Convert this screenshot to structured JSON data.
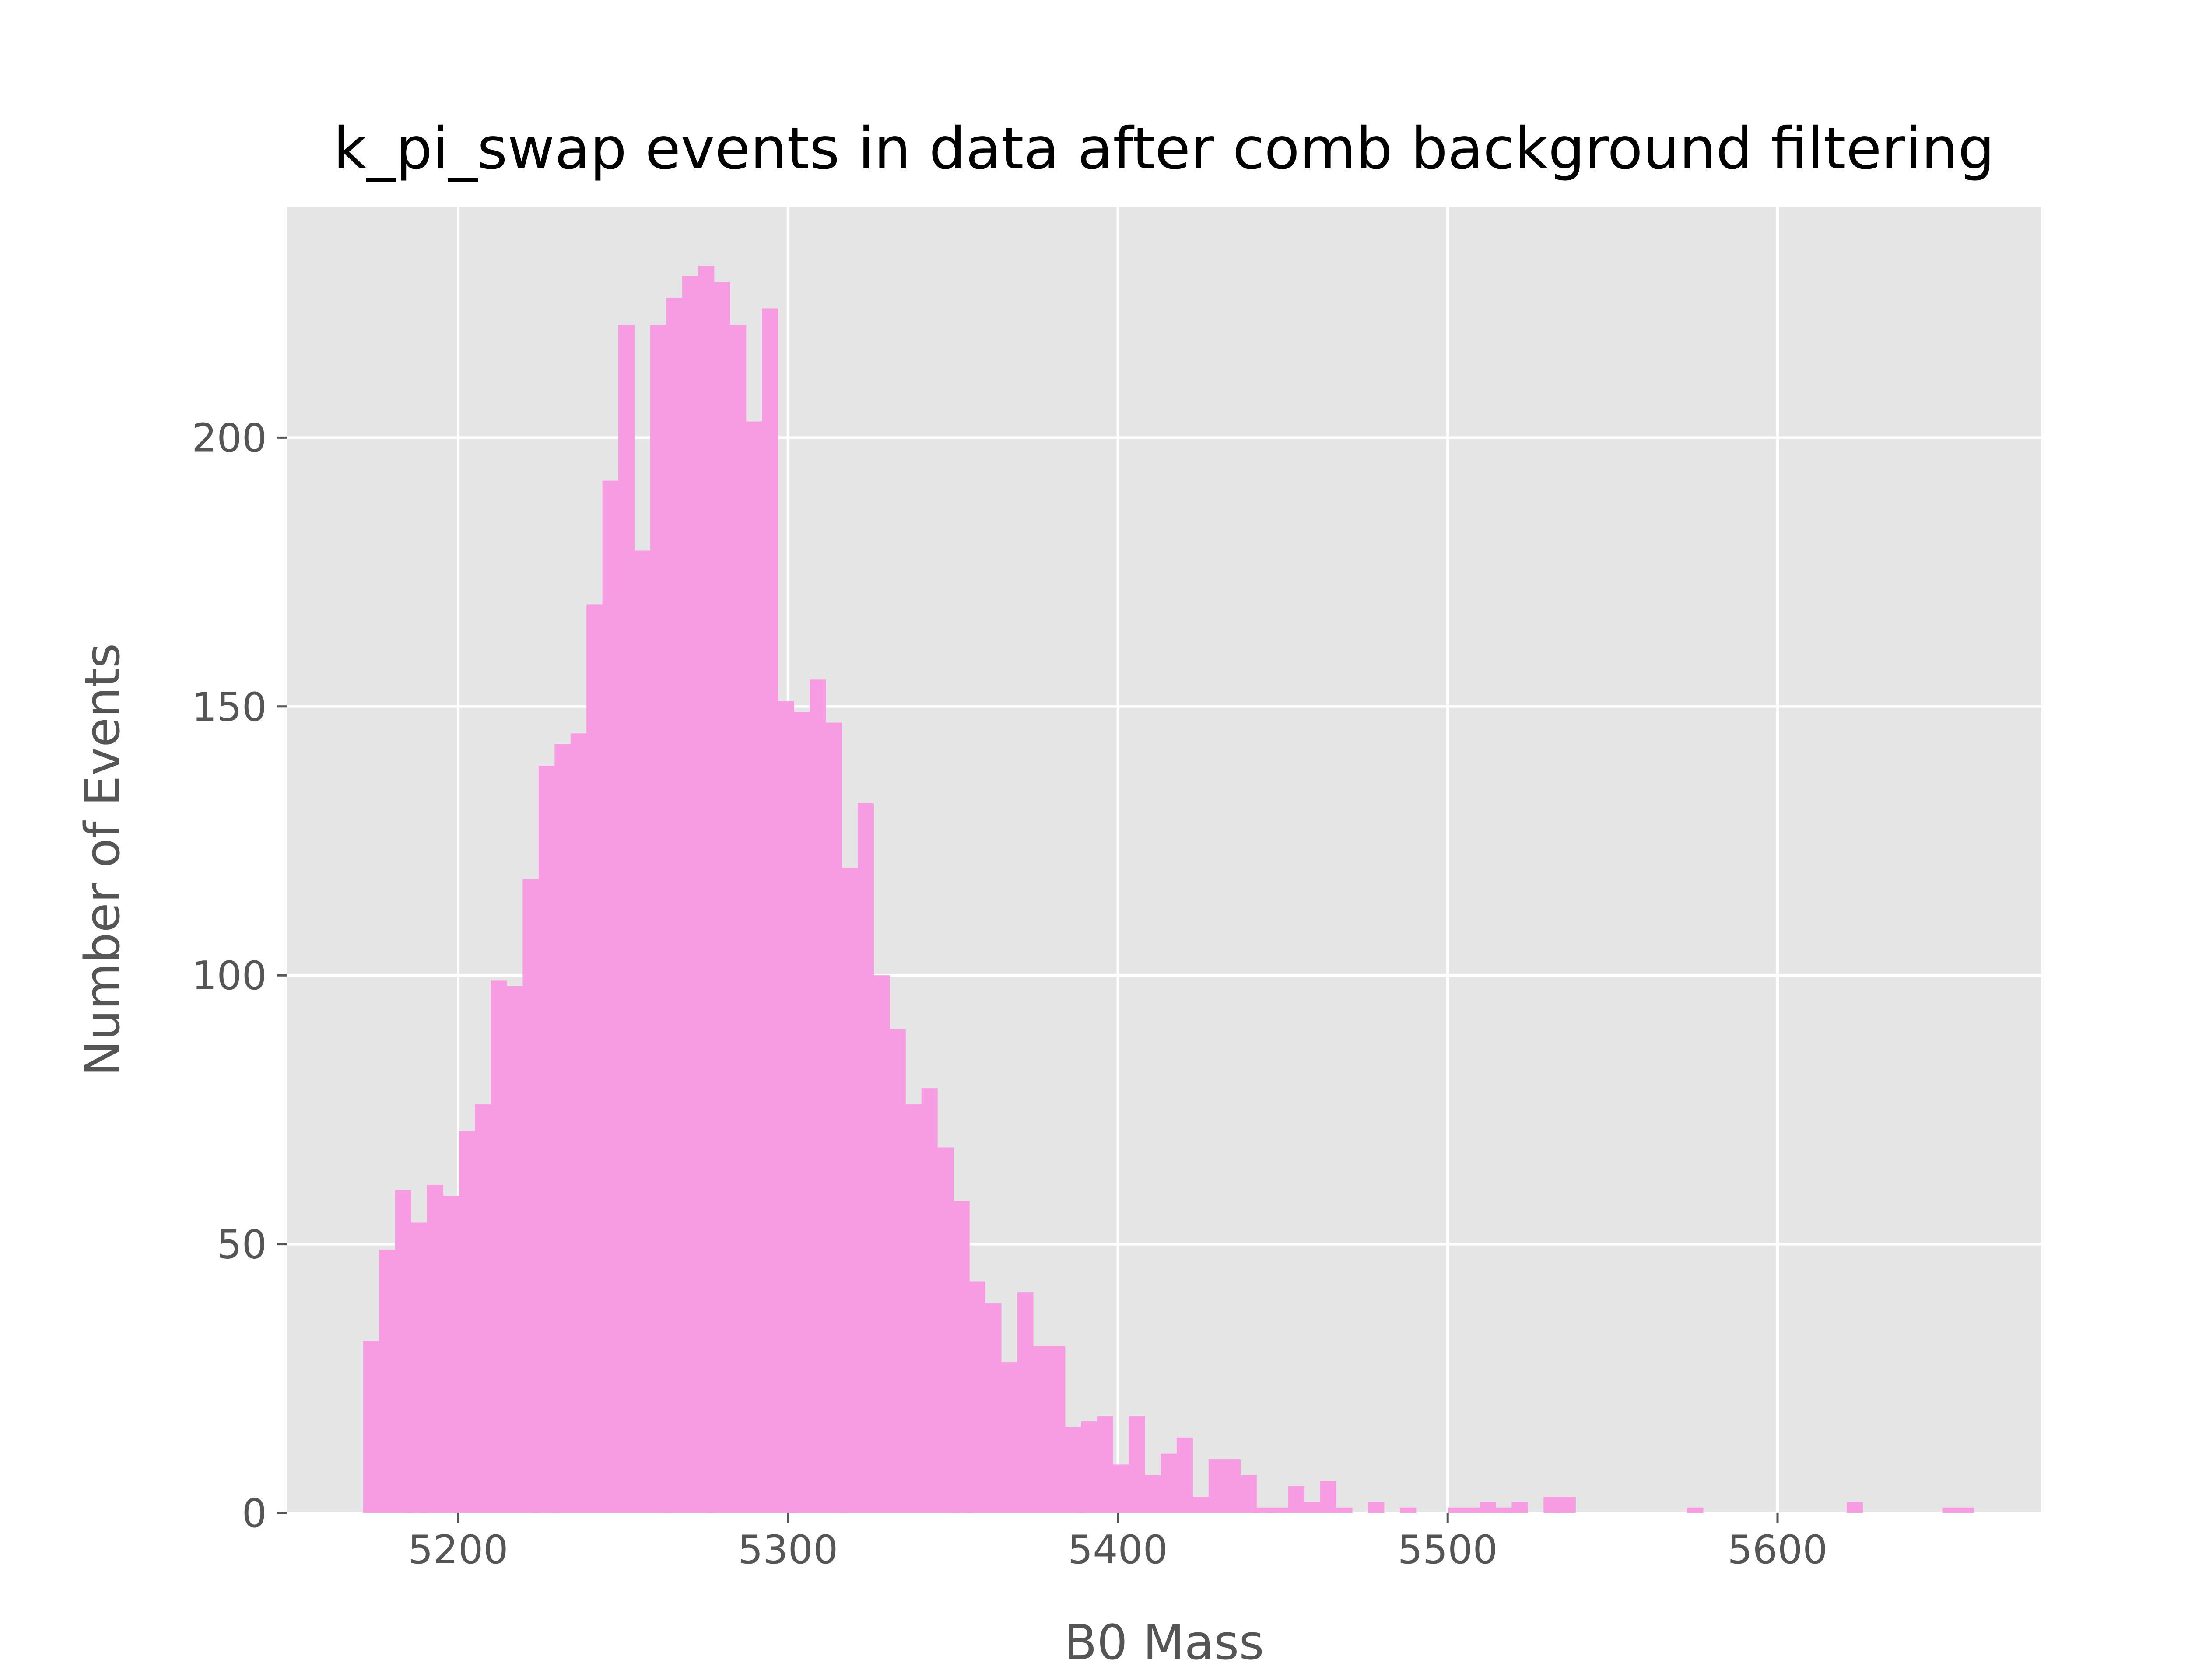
{
  "chart_data": {
    "type": "bar",
    "title": "k_pi_swap events in data after comb background filtering",
    "xlabel": "B0 Mass",
    "ylabel": "Number of Events",
    "xlim": [
      5148,
      5680
    ],
    "ylim": [
      0,
      243
    ],
    "grid": true,
    "legend": "none",
    "bar_color": "#f79be3",
    "background": "#e5e5e5",
    "grid_color": "#ffffff",
    "xticks": [
      {
        "value": 5200,
        "label": "5200"
      },
      {
        "value": 5300,
        "label": "5300"
      },
      {
        "value": 5400,
        "label": "5400"
      },
      {
        "value": 5500,
        "label": "5500"
      },
      {
        "value": 5600,
        "label": "5600"
      }
    ],
    "yticks": [
      {
        "value": 0,
        "label": "0"
      },
      {
        "value": 50,
        "label": "50"
      },
      {
        "value": 100,
        "label": "100"
      },
      {
        "value": 150,
        "label": "150"
      },
      {
        "value": 200,
        "label": "200"
      }
    ],
    "bin_start": 5171.2,
    "bin_width": 4.836,
    "values": [
      32,
      49,
      60,
      54,
      61,
      59,
      71,
      76,
      99,
      98,
      118,
      139,
      143,
      145,
      169,
      192,
      221,
      179,
      221,
      226,
      230,
      232,
      229,
      221,
      203,
      224,
      151,
      149,
      155,
      147,
      120,
      132,
      100,
      90,
      76,
      79,
      68,
      58,
      43,
      39,
      28,
      41,
      31,
      31,
      16,
      17,
      18,
      9,
      18,
      7,
      11,
      14,
      3,
      10,
      10,
      7,
      1,
      1,
      5,
      2,
      6,
      1,
      0,
      2,
      0,
      1,
      0,
      0,
      1,
      1,
      2,
      1,
      2,
      0,
      3,
      3,
      0,
      0,
      0,
      0,
      0,
      0,
      0,
      1,
      0,
      0,
      0,
      0,
      0,
      0,
      0,
      0,
      0,
      2,
      0,
      0,
      0,
      0,
      0,
      1,
      1,
      0
    ]
  }
}
